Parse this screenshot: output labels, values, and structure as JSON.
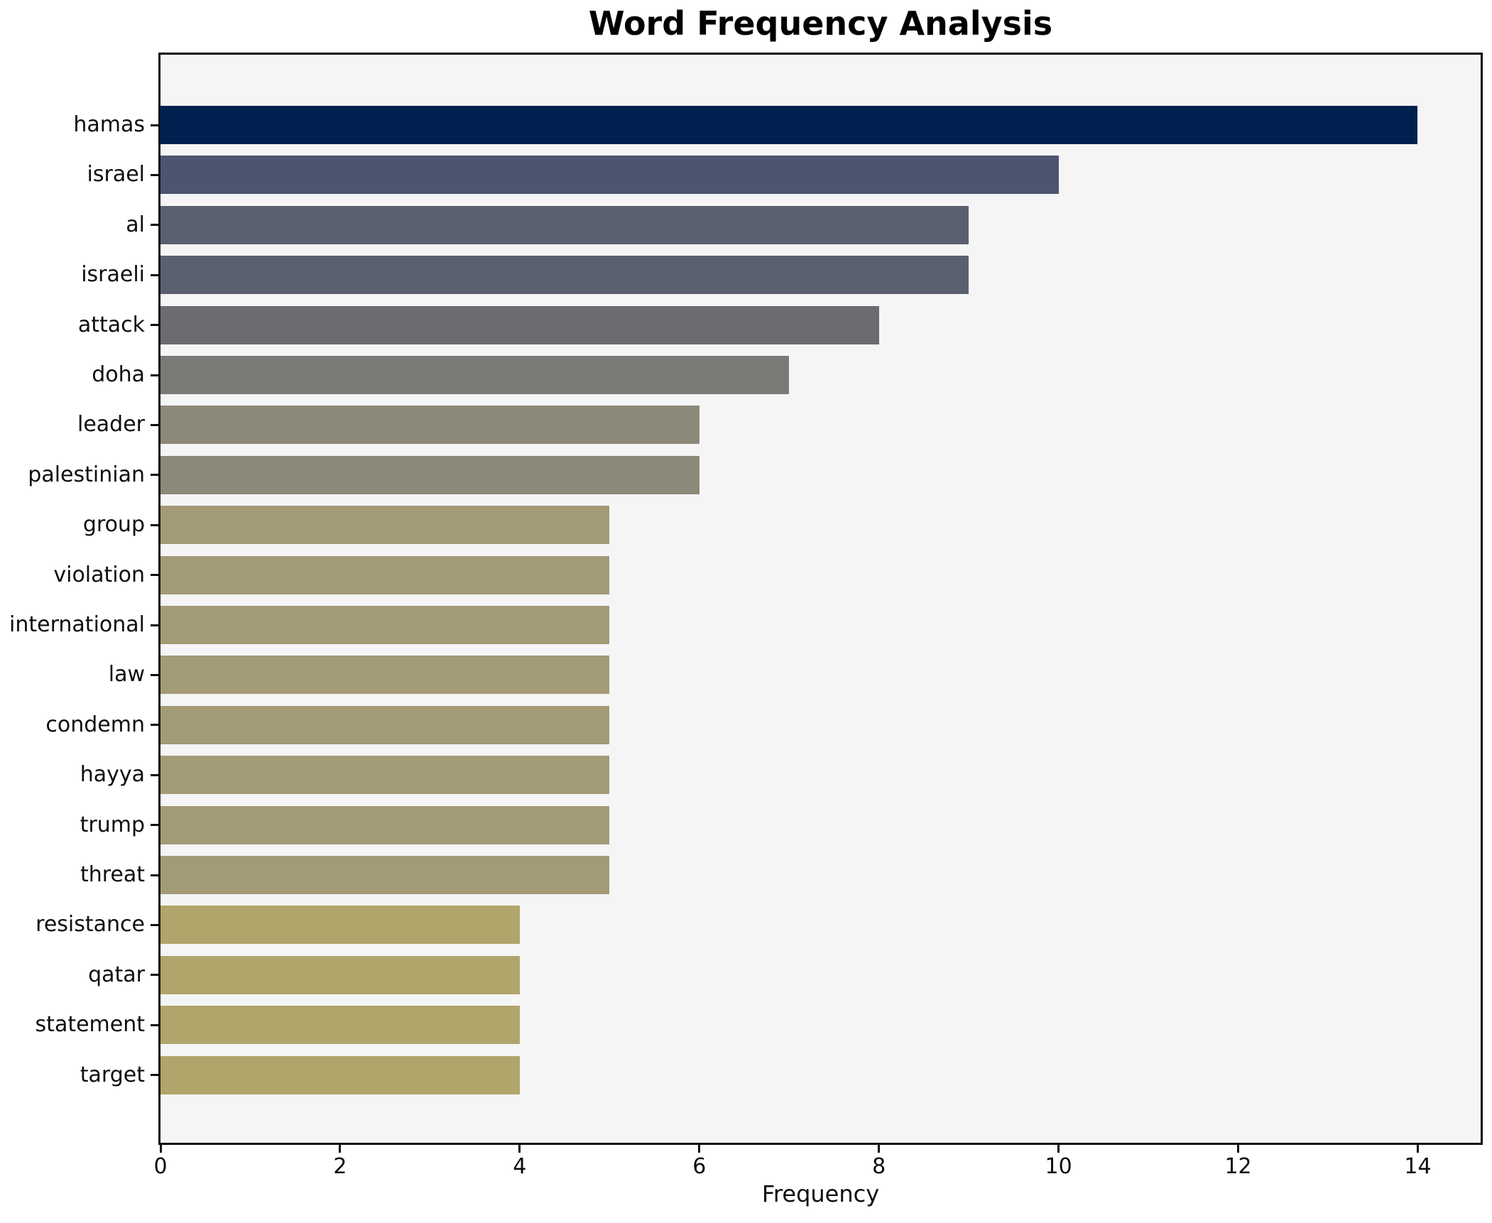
{
  "chart_data": {
    "type": "bar",
    "orientation": "horizontal",
    "title": "Word Frequency Analysis",
    "xlabel": "Frequency",
    "ylabel": "",
    "categories": [
      "hamas",
      "israel",
      "al",
      "israeli",
      "attack",
      "doha",
      "leader",
      "palestinian",
      "group",
      "violation",
      "international",
      "law",
      "condemn",
      "hayya",
      "trump",
      "threat",
      "resistance",
      "qatar",
      "statement",
      "target"
    ],
    "values": [
      14,
      10,
      9,
      9,
      8,
      7,
      6,
      6,
      5,
      5,
      5,
      5,
      5,
      5,
      5,
      5,
      4,
      4,
      4,
      4
    ],
    "bar_colors": [
      "#002150",
      "#4d5470",
      "#5b606e",
      "#5b606e",
      "#6a6c71",
      "#7b7a76",
      "#8d8978",
      "#8d8978",
      "#a39a76",
      "#a39a76",
      "#a39a76",
      "#a39a76",
      "#a39a76",
      "#a39a76",
      "#a39a76",
      "#a39a76",
      "#b0a56a",
      "#b0a56a",
      "#b0a56a",
      "#b0a56a"
    ],
    "x_ticks": [
      0,
      2,
      4,
      6,
      8,
      10,
      12,
      14
    ],
    "xlim": [
      0,
      14.7
    ],
    "grid": false,
    "legend": null,
    "colors": {
      "plot_background": "#f5f5f6",
      "figure_background": "#ffffff",
      "spine": "#0d0d0d",
      "text": "#000000"
    }
  }
}
